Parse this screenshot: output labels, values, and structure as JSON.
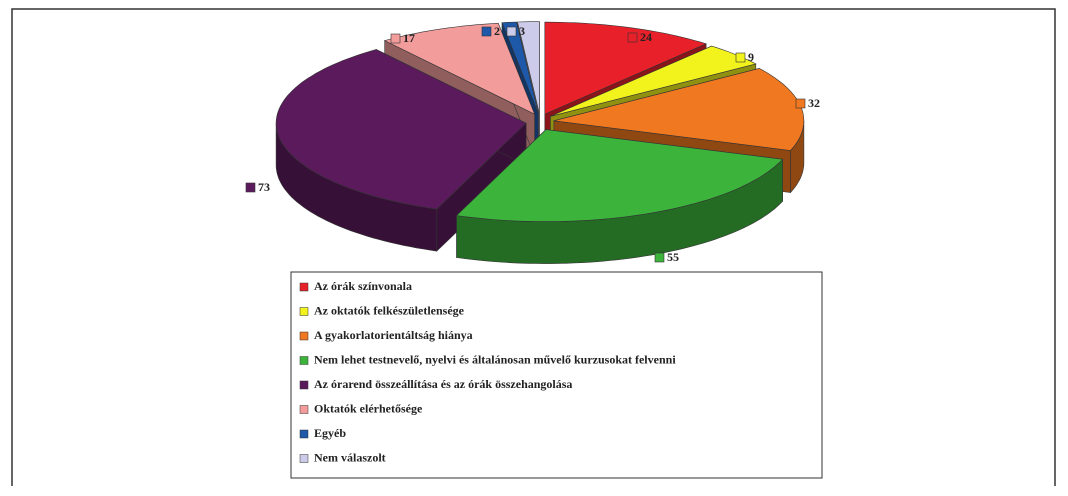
{
  "chart_data": {
    "type": "pie3d",
    "categories": [
      "Az órák színvonala",
      "Az oktatók felkészületlensége",
      "A gyakorlatorientáltság hiánya",
      "Nem lehet testnevelő, nyelvi és általánosan művelő kurzusokat felvenni",
      "Az órarend összeállítása és az órák összehangolása",
      "Oktatók elérhetősége",
      "Egyéb",
      "Nem válaszolt"
    ],
    "values": [
      24,
      9,
      32,
      55,
      73,
      17,
      2,
      3
    ],
    "colors": [
      "#e8202a",
      "#f2f21c",
      "#f07820",
      "#3cb43c",
      "#5a1a5c",
      "#f29c9c",
      "#1e58a8",
      "#ccccea"
    ]
  }
}
